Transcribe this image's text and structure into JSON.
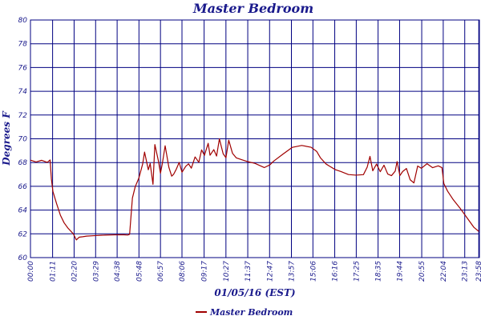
{
  "chart_data": {
    "type": "line",
    "title": "Master Bedroom",
    "xlabel": "01/05/16 (EST)",
    "ylabel": "Degrees F",
    "ylim": [
      60,
      80
    ],
    "y_ticks": [
      "60",
      "62",
      "64",
      "66",
      "68",
      "70",
      "72",
      "74",
      "76",
      "78",
      "80"
    ],
    "x_ticks": [
      "00:00",
      "01:11",
      "02:20",
      "03:29",
      "04:38",
      "05:48",
      "06:57",
      "08:06",
      "09:17",
      "10:27",
      "11:37",
      "12:47",
      "13:57",
      "15:06",
      "16:16",
      "17:25",
      "18:35",
      "19:44",
      "20:55",
      "22:04",
      "23:13",
      "23:58"
    ],
    "x_hours": [
      0,
      1.1833,
      2.3333,
      3.4833,
      4.6333,
      5.8,
      6.95,
      8.1,
      9.2833,
      10.45,
      11.6167,
      12.7833,
      13.95,
      15.1,
      16.2667,
      17.4167,
      18.5833,
      19.7333,
      20.9167,
      22.0667,
      23.2167,
      23.9667
    ],
    "grid": true,
    "legend_position": "bottom-center",
    "series": [
      {
        "name": "Master Bedroom",
        "color": "#a00000",
        "x": [
          0,
          0.3,
          0.6,
          0.9,
          1.05,
          1.12,
          1.2,
          1.4,
          1.6,
          1.8,
          2.0,
          2.3,
          2.45,
          2.6,
          2.8,
          3.0,
          3.5,
          4.0,
          4.5,
          5.0,
          5.2,
          5.3,
          5.45,
          5.6,
          5.8,
          6.0,
          6.1,
          6.3,
          6.4,
          6.55,
          6.65,
          6.85,
          6.95,
          7.05,
          7.2,
          7.4,
          7.55,
          7.65,
          7.8,
          7.95,
          8.1,
          8.3,
          8.45,
          8.6,
          8.8,
          9.0,
          9.15,
          9.3,
          9.5,
          9.6,
          9.8,
          9.95,
          10.1,
          10.3,
          10.45,
          10.6,
          10.8,
          11.0,
          11.3,
          11.6,
          12.0,
          12.5,
          12.8,
          13.0,
          13.5,
          14.0,
          14.5,
          15.0,
          15.3,
          15.5,
          15.8,
          16.0,
          16.3,
          16.6,
          17.0,
          17.4,
          17.8,
          18.0,
          18.15,
          18.3,
          18.5,
          18.7,
          18.9,
          19.1,
          19.3,
          19.5,
          19.6,
          19.75,
          19.9,
          20.1,
          20.3,
          20.5,
          20.7,
          20.9,
          21.2,
          21.5,
          21.8,
          22.0,
          22.1,
          22.3,
          22.6,
          23.0,
          23.4,
          23.7,
          23.97
        ],
        "values": [
          68.2,
          68.0,
          68.1,
          67.9,
          68.1,
          66.5,
          65.5,
          64.5,
          63.6,
          63.0,
          62.6,
          62.1,
          61.6,
          61.8,
          61.8,
          61.8,
          61.8,
          61.8,
          61.8,
          61.8,
          61.8,
          61.9,
          65.0,
          66.0,
          66.8,
          68.0,
          69.0,
          67.5,
          68.0,
          66.2,
          69.5,
          68.0,
          67.0,
          67.8,
          69.3,
          67.5,
          66.8,
          67.0,
          67.5,
          68.1,
          67.3,
          67.8,
          68.0,
          67.6,
          68.5,
          68.0,
          69.0,
          68.5,
          69.5,
          68.5,
          69.0,
          68.5,
          70.0,
          68.8,
          68.5,
          70.0,
          68.9,
          68.5,
          68.3,
          68.1,
          67.9,
          67.5,
          67.7,
          68.0,
          68.6,
          69.2,
          69.4,
          69.3,
          69.0,
          68.5,
          68.0,
          67.8,
          67.5,
          67.3,
          67.0,
          66.9,
          66.9,
          67.5,
          68.4,
          67.2,
          67.8,
          67.2,
          67.8,
          67.1,
          67.0,
          67.4,
          68.2,
          67.0,
          67.3,
          67.5,
          66.5,
          66.2,
          67.6,
          67.4,
          67.8,
          67.5,
          67.7,
          67.6,
          66.3,
          65.7,
          65.0,
          64.2,
          63.3,
          62.6,
          62.2
        ]
      }
    ]
  }
}
